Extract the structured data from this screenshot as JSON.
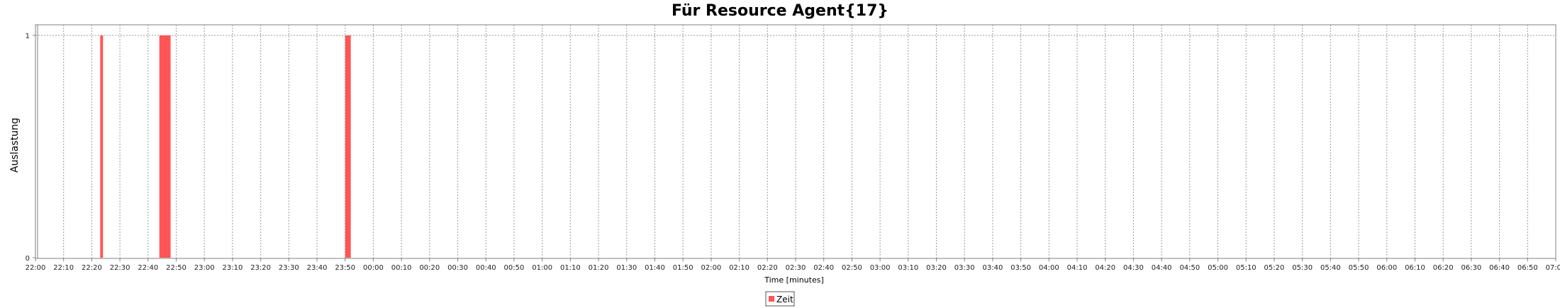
{
  "chart_data": {
    "type": "bar",
    "title": "Für Resource Agent{17}",
    "xlabel": "Time [minutes]",
    "ylabel": "Auslastung",
    "ylim": [
      0,
      1
    ],
    "y_ticks": [
      "0",
      "1"
    ],
    "x_range": [
      "22:00",
      "07:00"
    ],
    "x_ticks": [
      "22:00",
      "22:10",
      "22:20",
      "22:30",
      "22:40",
      "22:50",
      "23:00",
      "23:10",
      "23:20",
      "23:30",
      "23:40",
      "23:50",
      "00:00",
      "00:10",
      "00:20",
      "00:30",
      "00:40",
      "00:50",
      "01:00",
      "01:10",
      "01:20",
      "01:30",
      "01:40",
      "01:50",
      "02:00",
      "02:10",
      "02:20",
      "02:30",
      "02:40",
      "02:50",
      "03:00",
      "03:10",
      "03:20",
      "03:30",
      "03:40",
      "03:50",
      "04:00",
      "04:10",
      "04:20",
      "04:30",
      "04:40",
      "04:50",
      "05:00",
      "05:10",
      "05:20",
      "05:30",
      "05:40",
      "05:50",
      "06:00",
      "06:10",
      "06:20",
      "06:30",
      "06:40",
      "06:50",
      "07:00"
    ],
    "grid": true,
    "legend_position": "bottom",
    "series": [
      {
        "name": "Zeit",
        "color": "#ff5555",
        "bars": [
          {
            "start": "22:23",
            "end": "22:24",
            "value": 1
          },
          {
            "start": "22:44",
            "end": "22:48",
            "value": 1
          },
          {
            "start": "23:50",
            "end": "23:52",
            "value": 1
          }
        ]
      }
    ]
  }
}
